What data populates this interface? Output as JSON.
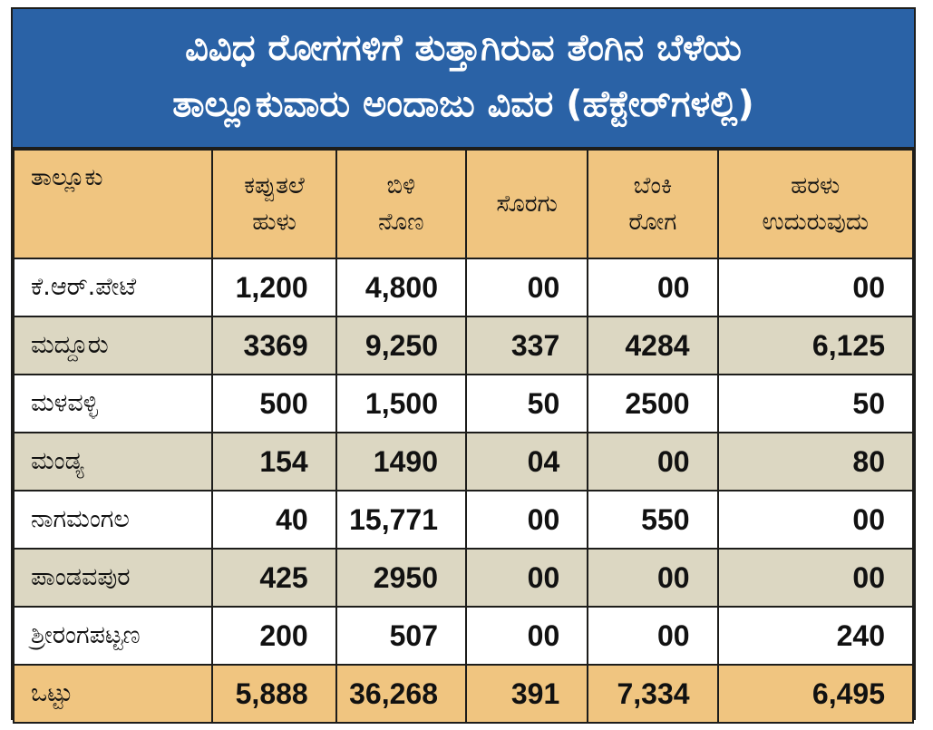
{
  "title": {
    "line1": "ವಿವಿಧ ರೋಗಗಳಿಗೆ ತುತ್ತಾಗಿರುವ ತೆಂಗಿನ ಬೆಳೆಯ",
    "line2": "ತಾಲ್ಲೂಕುವಾರು ಅಂದಾಜು ವಿವರ (ಹೆಕ್ಟೇರ್‌ಗಳಲ್ಲಿ)"
  },
  "columns": [
    {
      "line1": "ತಾಲ್ಲೂಕು",
      "line2": ""
    },
    {
      "line1": "ಕಪ್ಪುತಲೆ",
      "line2": "ಹುಳು"
    },
    {
      "line1": "ಬಿಳಿ",
      "line2": "ನೊಣ"
    },
    {
      "line1": "ಸೊರಗು",
      "line2": ""
    },
    {
      "line1": "ಬೆಂಕಿ",
      "line2": "ರೋಗ"
    },
    {
      "line1": "ಹರಳು",
      "line2": "ಉದುರುವುದು"
    }
  ],
  "rows": [
    {
      "taluk": "ಕೆ.ಆರ್.ಪೇಟೆ",
      "values": [
        "1,200",
        "4,800",
        "00",
        "00",
        "00"
      ]
    },
    {
      "taluk": "ಮದ್ದೂರು",
      "values": [
        "3369",
        "9,250",
        "337",
        "4284",
        "6,125"
      ]
    },
    {
      "taluk": "ಮಳವಳ್ಳಿ",
      "values": [
        "500",
        "1,500",
        "50",
        "2500",
        "50"
      ]
    },
    {
      "taluk": "ಮಂಡ್ಯ",
      "values": [
        "154",
        "1490",
        "04",
        "00",
        "80"
      ]
    },
    {
      "taluk": "ನಾಗಮಂಗಲ",
      "values": [
        "40",
        "15,771",
        "00",
        "550",
        "00"
      ]
    },
    {
      "taluk": "ಪಾಂಡವಪುರ",
      "values": [
        "425",
        "2950",
        "00",
        "00",
        "00"
      ]
    },
    {
      "taluk": "ಶ್ರೀರಂಗಪಟ್ಟಣ",
      "values": [
        "200",
        "507",
        "00",
        "00",
        "240"
      ]
    }
  ],
  "total": {
    "label": "ಒಟ್ಟು",
    "values": [
      "5,888",
      "36,268",
      "391",
      "7,334",
      "6,495"
    ]
  },
  "colors": {
    "title_bg": "#2a62a6",
    "header_bg": "#f0c580",
    "row_alt_bg": "#dcd7c2",
    "border": "#1d1d1b"
  }
}
